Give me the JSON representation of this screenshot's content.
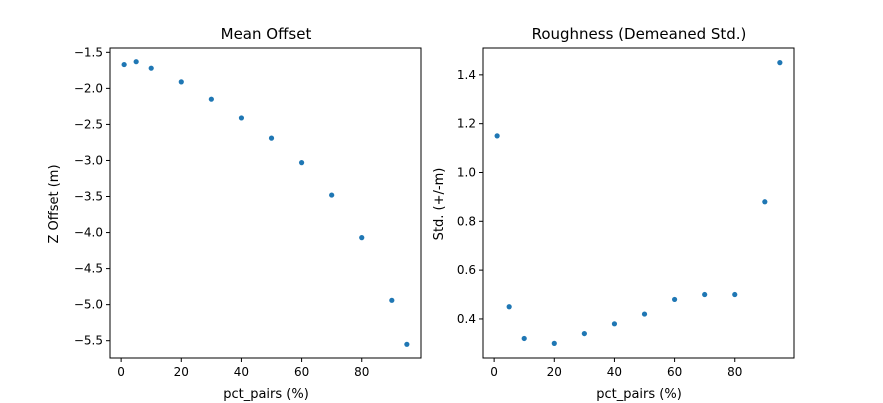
{
  "figure": {
    "background": "#ffffff"
  },
  "chart_data": [
    {
      "type": "scatter",
      "title": "Mean Offset",
      "xlabel": "pct_pairs (%)",
      "ylabel": "Z Offset (m)",
      "xlim": [
        -3.7,
        99.7
      ],
      "ylim": [
        -5.74,
        -1.44
      ],
      "xticks": [
        0,
        20,
        40,
        60,
        80
      ],
      "xtick_labels": [
        "0",
        "20",
        "40",
        "60",
        "80"
      ],
      "yticks": [
        -5.5,
        -5.0,
        -4.5,
        -4.0,
        -3.5,
        -3.0,
        -2.5,
        -2.0,
        -1.5
      ],
      "ytick_labels": [
        "−5.5",
        "−5.0",
        "−4.5",
        "−4.0",
        "−3.5",
        "−3.0",
        "−2.5",
        "−2.0",
        "−1.5"
      ],
      "grid": false,
      "color": "#1f77b4",
      "x": [
        1,
        5,
        10,
        20,
        30,
        40,
        50,
        60,
        70,
        80,
        90,
        95
      ],
      "y": [
        -1.67,
        -1.63,
        -1.72,
        -1.91,
        -2.15,
        -2.41,
        -2.69,
        -3.03,
        -3.48,
        -4.07,
        -4.94,
        -5.55
      ]
    },
    {
      "type": "scatter",
      "title": "Roughness (Demeaned Std.)",
      "xlabel": "pct_pairs (%)",
      "ylabel": "Std. (+/-m)",
      "xlim": [
        -3.7,
        99.7
      ],
      "ylim": [
        0.24,
        1.51
      ],
      "xticks": [
        0,
        20,
        40,
        60,
        80
      ],
      "xtick_labels": [
        "0",
        "20",
        "40",
        "60",
        "80"
      ],
      "yticks": [
        0.4,
        0.6,
        0.8,
        1.0,
        1.2,
        1.4
      ],
      "ytick_labels": [
        "0.4",
        "0.6",
        "0.8",
        "1.0",
        "1.2",
        "1.4"
      ],
      "grid": false,
      "color": "#1f77b4",
      "x": [
        1,
        5,
        10,
        20,
        30,
        40,
        50,
        60,
        70,
        80,
        90,
        95
      ],
      "y": [
        1.15,
        0.45,
        0.32,
        0.3,
        0.34,
        0.38,
        0.42,
        0.48,
        0.5,
        0.5,
        0.88,
        1.45
      ]
    }
  ]
}
